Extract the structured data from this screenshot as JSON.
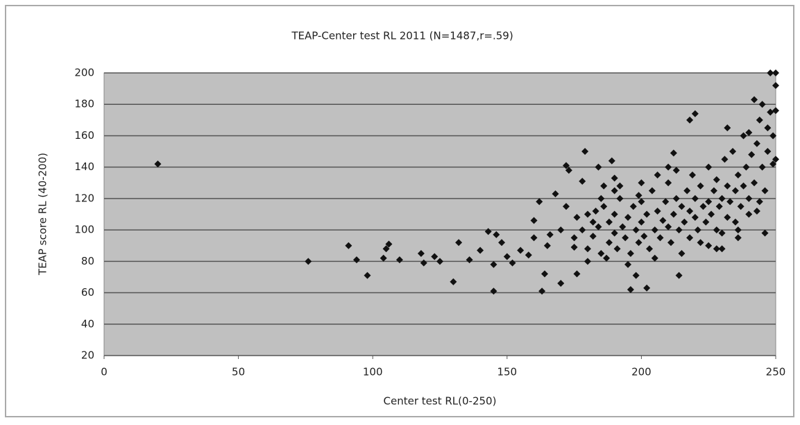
{
  "chart_data": {
    "type": "scatter",
    "title": "TEAP-Center test RL 2011 (N=1487,r=.59)",
    "x_label": "Center test RL(0-250)",
    "y_label": "TEAP score RL (40-200)",
    "color": "#111111",
    "grid": true,
    "xlim": [
      0,
      250
    ],
    "xticks": [
      0,
      50,
      100,
      150,
      200,
      250
    ],
    "ylim": [
      20,
      200
    ],
    "yticks": [
      20,
      40,
      60,
      80,
      100,
      120,
      140,
      160,
      180,
      200
    ],
    "x": [
      20,
      76,
      91,
      94,
      98,
      104,
      105,
      106,
      110,
      118,
      119,
      123,
      125,
      130,
      132,
      136,
      140,
      143,
      145,
      145,
      146,
      148,
      150,
      152,
      155,
      158,
      160,
      162,
      163,
      164,
      166,
      168,
      170,
      172,
      173,
      175,
      176,
      178,
      179,
      182,
      184,
      186,
      189,
      190,
      196,
      198,
      202,
      212,
      214,
      218,
      220,
      228,
      230,
      232,
      236,
      240,
      242,
      245,
      248,
      250,
      250,
      250,
      250,
      249,
      247,
      244,
      246,
      175,
      178,
      180,
      180,
      182,
      184,
      185,
      186,
      188,
      188,
      190,
      190,
      191,
      192,
      193,
      194,
      195,
      196,
      197,
      198,
      199,
      200,
      200,
      201,
      202,
      203,
      204,
      205,
      206,
      207,
      208,
      209,
      210,
      210,
      211,
      212,
      213,
      214,
      215,
      216,
      217,
      218,
      218,
      219,
      220,
      220,
      221,
      222,
      223,
      224,
      225,
      225,
      226,
      227,
      228,
      228,
      229,
      230,
      231,
      232,
      232,
      233,
      234,
      235,
      235,
      236,
      237,
      238,
      238,
      239,
      240,
      240,
      241,
      242,
      243,
      244,
      245,
      246,
      247,
      248,
      249,
      185,
      195,
      205,
      215,
      225,
      200,
      210,
      190,
      180,
      170,
      165,
      160,
      172,
      176,
      183,
      187,
      192,
      199,
      206,
      213,
      222,
      230,
      236,
      243
    ],
    "values": [
      142,
      80,
      90,
      81,
      71,
      82,
      88,
      91,
      81,
      85,
      79,
      83,
      80,
      67,
      92,
      81,
      87,
      99,
      61,
      78,
      97,
      92,
      83,
      79,
      87,
      84,
      106,
      118,
      61,
      72,
      97,
      123,
      66,
      141,
      138,
      89,
      72,
      131,
      150,
      105,
      140,
      128,
      144,
      133,
      62,
      71,
      63,
      149,
      71,
      170,
      174,
      88,
      88,
      165,
      95,
      162,
      183,
      180,
      200,
      200,
      192,
      176,
      145,
      142,
      165,
      118,
      98,
      95,
      100,
      88,
      110,
      96,
      102,
      85,
      115,
      92,
      105,
      98,
      110,
      88,
      120,
      102,
      95,
      108,
      85,
      115,
      100,
      92,
      105,
      118,
      96,
      110,
      88,
      125,
      100,
      112,
      95,
      106,
      118,
      102,
      130,
      92,
      110,
      120,
      100,
      115,
      105,
      125,
      95,
      112,
      135,
      108,
      120,
      100,
      128,
      115,
      105,
      140,
      118,
      110,
      125,
      100,
      132,
      115,
      120,
      145,
      108,
      128,
      118,
      150,
      125,
      105,
      135,
      115,
      160,
      128,
      140,
      120,
      110,
      148,
      130,
      155,
      170,
      140,
      125,
      150,
      175,
      160,
      120,
      78,
      82,
      85,
      90,
      130,
      140,
      125,
      80,
      100,
      90,
      95,
      115,
      108,
      112,
      82,
      128,
      122,
      135,
      138,
      92,
      98,
      100,
      112
    ]
  }
}
